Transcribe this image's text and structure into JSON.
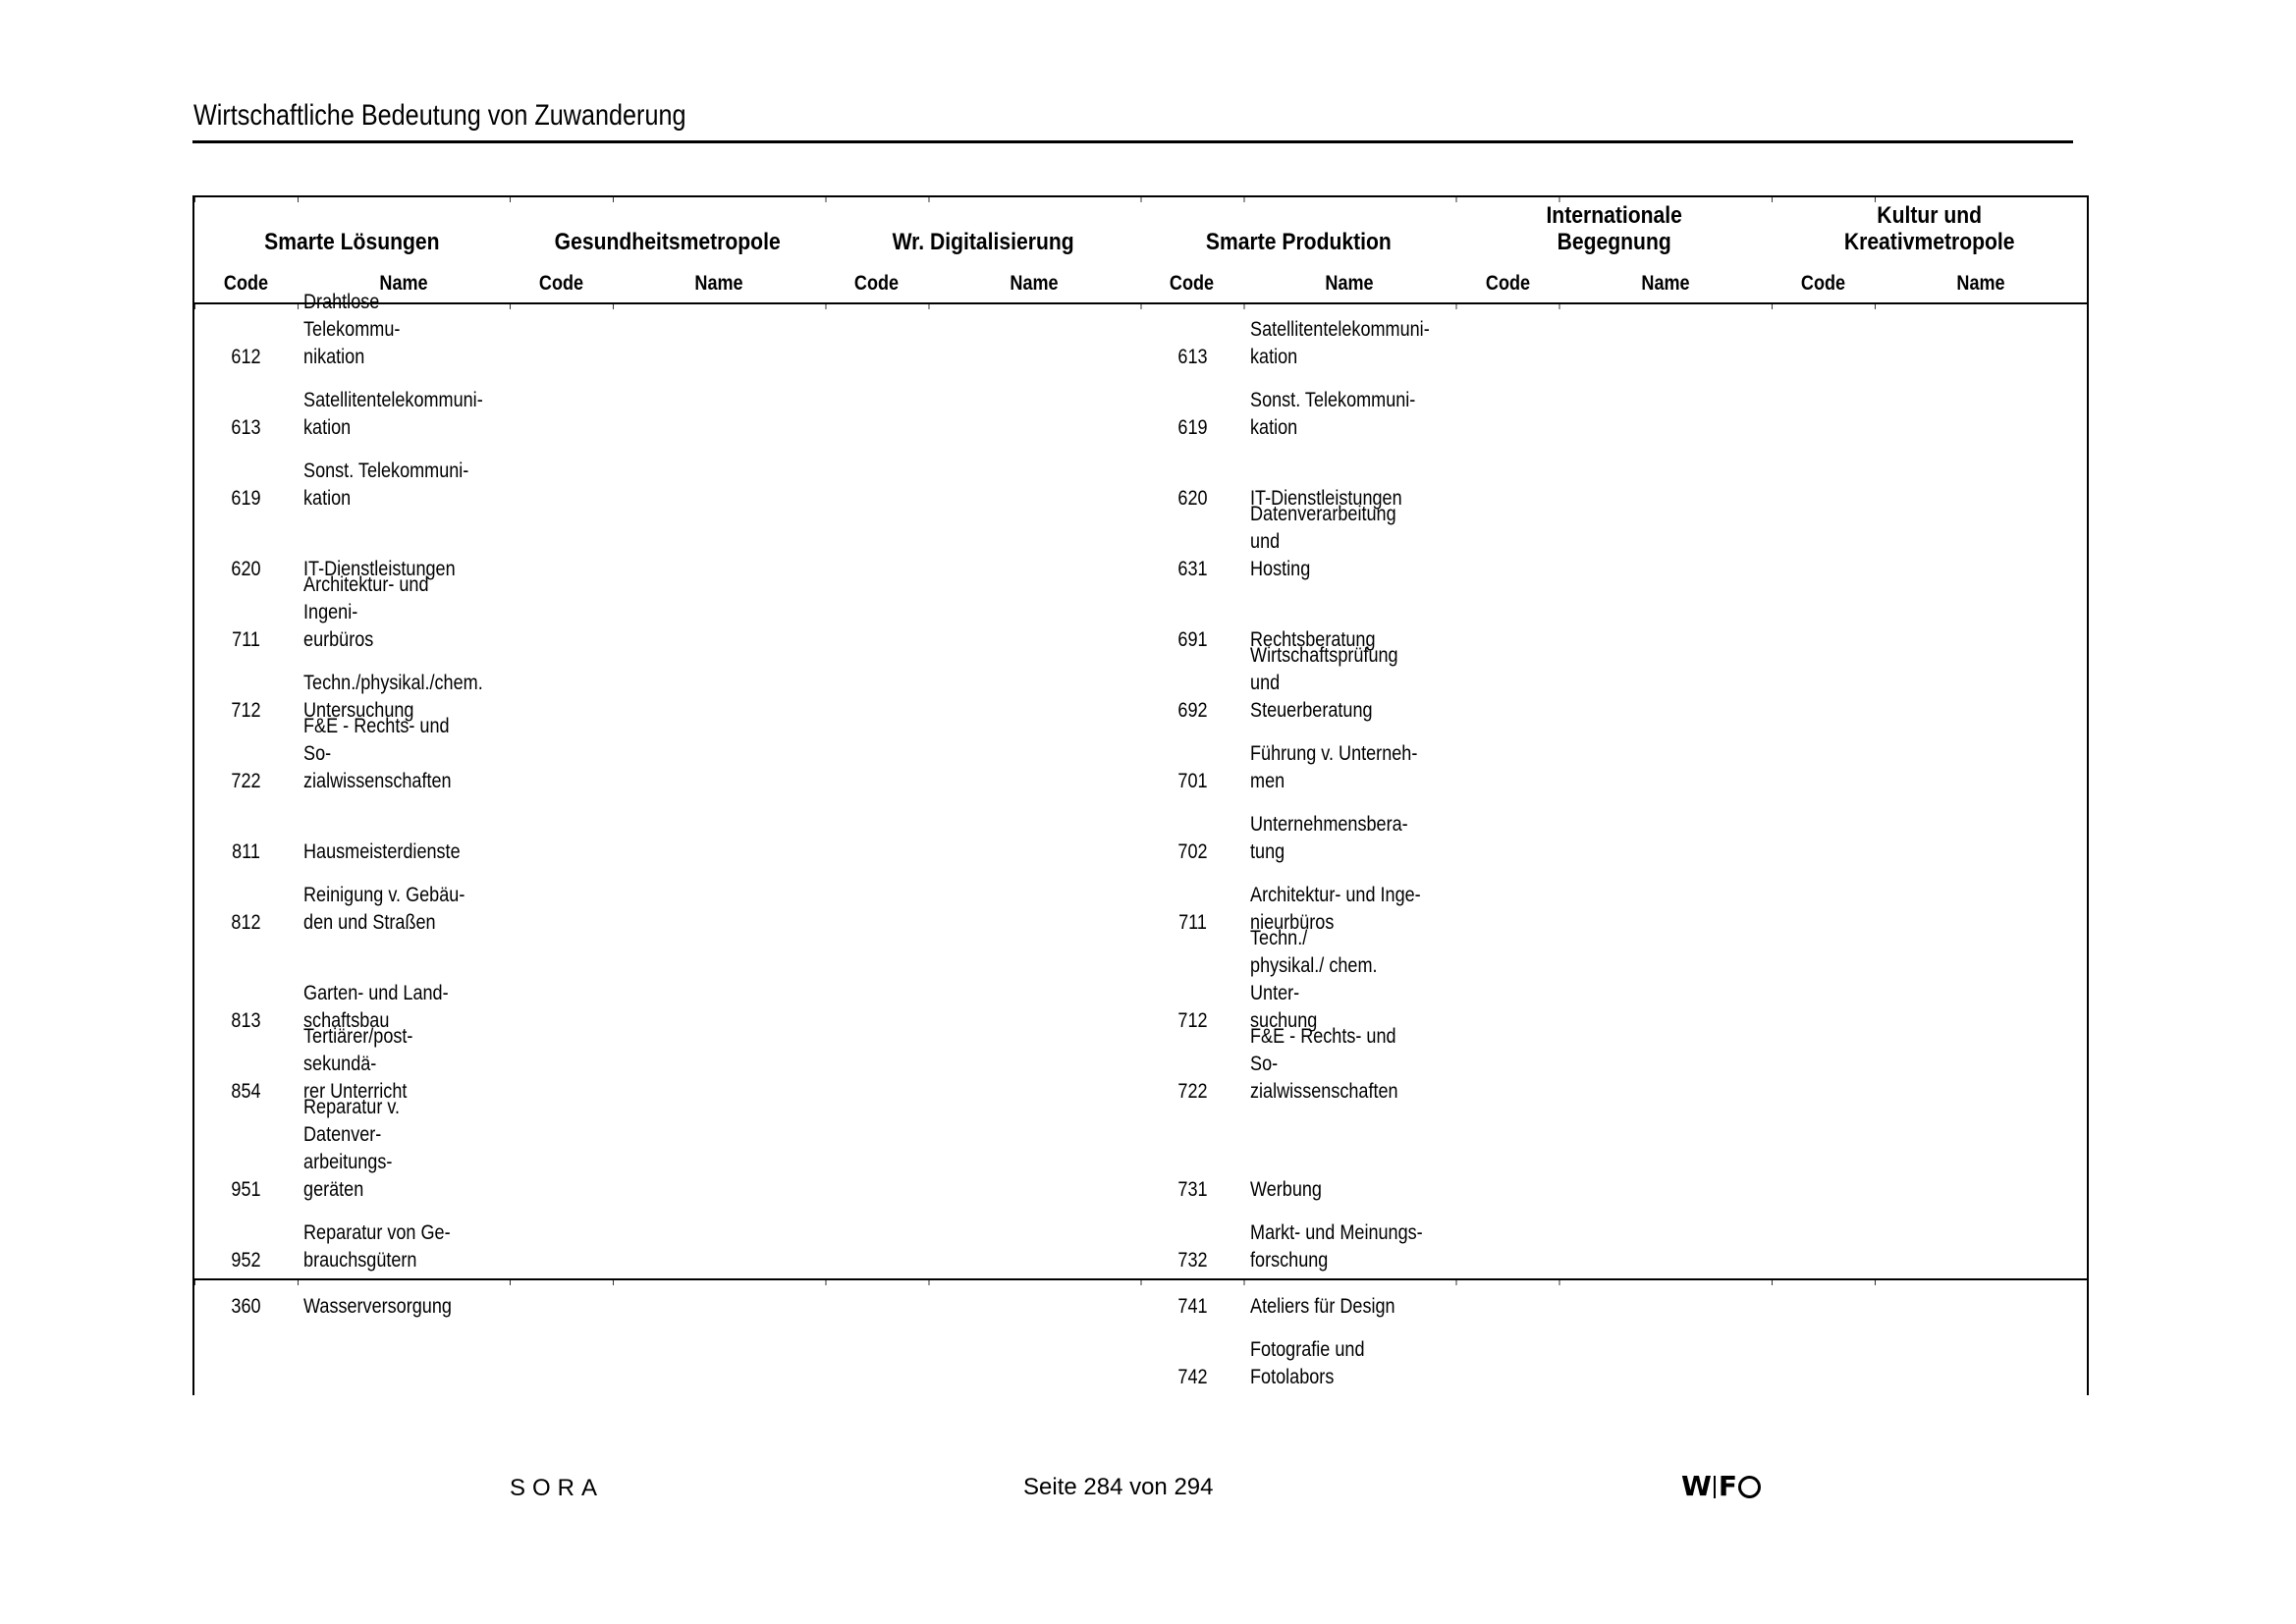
{
  "page": {
    "title": "Wirtschaftliche Bedeutung von Zuwanderung"
  },
  "footer": {
    "org_left": "SORA",
    "page_indicator": "Seite 284 von 294",
    "logo_w": "W",
    "logo_f": "F"
  },
  "table": {
    "groups": [
      {
        "title": "Smarte Lösungen",
        "code_label": "Code",
        "name_label": "Name"
      },
      {
        "title": "Gesundheitsmetropole",
        "code_label": "Code",
        "name_label": "Name"
      },
      {
        "title": "Wr. Digitalisierung",
        "code_label": "Code",
        "name_label": "Name"
      },
      {
        "title": "Smarte Produktion",
        "code_label": "Code",
        "name_label": "Name"
      },
      {
        "title": "Internationale\nBegegnung",
        "code_label": "Code",
        "name_label": "Name"
      },
      {
        "title": "Kultur und\nKreativmetropole",
        "code_label": "Code",
        "name_label": "Name"
      }
    ],
    "sections": [
      {
        "rows": [
          {
            "c1": {
              "code": "612",
              "name": "Drahtlose Telekommu-\nnikation"
            },
            "c4": {
              "code": "613",
              "name": "Satellitentelekommuni-\nkation"
            }
          },
          {
            "c1": {
              "code": "613",
              "name": "Satellitentelekommuni-\nkation"
            },
            "c4": {
              "code": "619",
              "name": "Sonst. Telekommuni-\nkation"
            }
          },
          {
            "c1": {
              "code": "619",
              "name": "Sonst. Telekommuni-\nkation"
            },
            "c4": {
              "code": "620",
              "name": "IT-Dienstleistungen"
            }
          },
          {
            "c1": {
              "code": "620",
              "name": "IT-Dienstleistungen"
            },
            "c4": {
              "code": "631",
              "name": "Datenverarbeitung und\nHosting"
            }
          },
          {
            "c1": {
              "code": "711",
              "name": "Architektur- und Ingeni-\neurbüros"
            },
            "c4": {
              "code": "691",
              "name": "Rechtsberatung"
            }
          },
          {
            "c1": {
              "code": "712",
              "name": "Techn./physikal./chem.\nUntersuchung"
            },
            "c4": {
              "code": "692",
              "name": "Wirtschaftsprüfung und\nSteuerberatung"
            }
          },
          {
            "c1": {
              "code": "722",
              "name": "F&E - Rechts- und So-\nzialwissenschaften"
            },
            "c4": {
              "code": "701",
              "name": "Führung v. Unterneh-\nmen"
            }
          },
          {
            "c1": {
              "code": "811",
              "name": "Hausmeisterdienste"
            },
            "c4": {
              "code": "702",
              "name": "Unternehmensbera-\ntung"
            }
          },
          {
            "c1": {
              "code": "812",
              "name": "Reinigung v. Gebäu-\nden und Straßen"
            },
            "c4": {
              "code": "711",
              "name": "Architektur- und Inge-\nnieurbüros"
            }
          },
          {
            "c1": {
              "code": "813",
              "name": "Garten- und Land-\nschaftsbau"
            },
            "c4": {
              "code": "712",
              "name": "Techn./\nphysikal./ chem. Unter-\nsuchung"
            }
          },
          {
            "c1": {
              "code": "854",
              "name": "Tertiärer/post-sekundä-\nrer Unterricht"
            },
            "c4": {
              "code": "722",
              "name": "F&E - Rechts- und So-\nzialwissenschaften"
            }
          },
          {
            "c1": {
              "code": "951",
              "name": "Reparatur v. Datenver-\narbeitungs-\ngeräten"
            },
            "c4": {
              "code": "731",
              "name": "Werbung"
            }
          },
          {
            "c1": {
              "code": "952",
              "name": "Reparatur von Ge-\nbrauchsgütern"
            },
            "c4": {
              "code": "732",
              "name": "Markt- und Meinungs-\nforschung"
            }
          }
        ]
      },
      {
        "rows": [
          {
            "c1": {
              "code": "360",
              "name": "Wasserversorgung"
            },
            "c4": {
              "code": "741",
              "name": "Ateliers für Design"
            }
          },
          {
            "c4": {
              "code": "742",
              "name": "Fotografie und\nFotolabors"
            }
          }
        ]
      }
    ]
  }
}
